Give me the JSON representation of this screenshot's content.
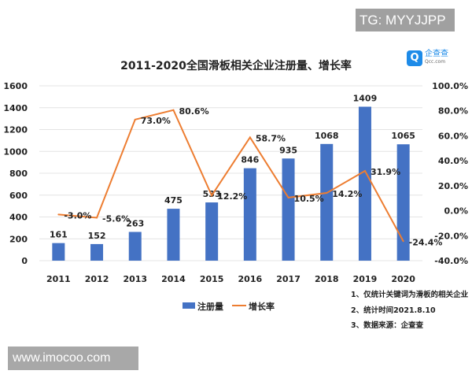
{
  "watermarks": {
    "tg": "TG: MYYJJPP",
    "site": "www.imocoo.com"
  },
  "logo": {
    "name": "企查查",
    "sub": "Qcc.com"
  },
  "chart_data": {
    "type": "bar+line",
    "title": "2011-2020全国滑板相关企业注册量、增长率",
    "categories": [
      "2011",
      "2012",
      "2013",
      "2014",
      "2015",
      "2016",
      "2017",
      "2018",
      "2019",
      "2020"
    ],
    "series": [
      {
        "name": "注册量",
        "type": "bar",
        "axis": "left",
        "values": [
          161,
          152,
          263,
          475,
          533,
          846,
          935,
          1068,
          1409,
          1065
        ],
        "labels": [
          "161",
          "152",
          "263",
          "475",
          "533",
          "846",
          "935",
          "1068",
          "1409",
          "1065"
        ]
      },
      {
        "name": "增长率",
        "type": "line",
        "axis": "right",
        "values": [
          -3.0,
          -5.6,
          73.0,
          80.6,
          12.2,
          58.7,
          10.5,
          14.2,
          31.9,
          -24.4
        ],
        "labels": [
          "-3.0%",
          "-5.6%",
          "73.0%",
          "80.6%",
          "12.2%",
          "58.7%",
          "10.5%",
          "14.2%",
          "31.9%",
          "-24.4%"
        ]
      }
    ],
    "left_axis": {
      "ylim": [
        0,
        1600
      ],
      "ticks": [
        "0",
        "200",
        "400",
        "600",
        "800",
        "1000",
        "1200",
        "1400",
        "1600"
      ]
    },
    "right_axis": {
      "ylim": [
        -40,
        100
      ],
      "ticks": [
        "-40.0%",
        "-20.0%",
        "0.0%",
        "20.0%",
        "40.0%",
        "60.0%",
        "80.0%",
        "100.0%"
      ]
    },
    "grid": true,
    "legend": "bottom",
    "colors": {
      "bar": "#4472c4",
      "line": "#ed7d31"
    }
  },
  "notes": [
    "1、仅统计关键词为滑板的相关企业",
    "2、统计时间2021.8.10",
    "3、数据来源：企查查"
  ]
}
